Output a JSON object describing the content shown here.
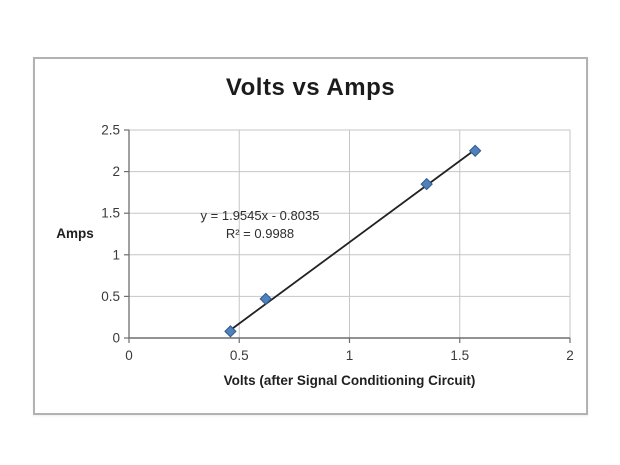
{
  "chart_data": {
    "type": "scatter",
    "title": "Volts vs Amps",
    "xlabel": "Volts (after Signal Conditioning Circuit)",
    "ylabel": "Amps",
    "xlim": [
      0,
      2
    ],
    "ylim": [
      0,
      2.5
    ],
    "xticks": [
      0,
      0.5,
      1,
      1.5,
      2
    ],
    "yticks": [
      0,
      0.5,
      1,
      1.5,
      2,
      2.5
    ],
    "grid": true,
    "legend": "none",
    "points": [
      {
        "x": 0.46,
        "y": 0.08
      },
      {
        "x": 0.62,
        "y": 0.47
      },
      {
        "x": 1.35,
        "y": 1.85
      },
      {
        "x": 1.57,
        "y": 2.25
      }
    ],
    "trendline": {
      "slope": 1.9545,
      "intercept": -0.8035,
      "x_start": 0.455,
      "x_end": 1.578,
      "equation_label": "y = 1.9545x - 0.8035",
      "r_squared_label": "R² = 0.9988"
    },
    "marker": {
      "shape": "diamond",
      "fill": "#4f81bd",
      "border": "#2e5a88"
    },
    "colors": {
      "gridline": "#c6c6c6",
      "axis": "#6e6e6e",
      "trendline": "#222222",
      "tick_text": "#3a3a3a",
      "frame_border": "#b2b2b2",
      "background": "#ffffff"
    }
  }
}
